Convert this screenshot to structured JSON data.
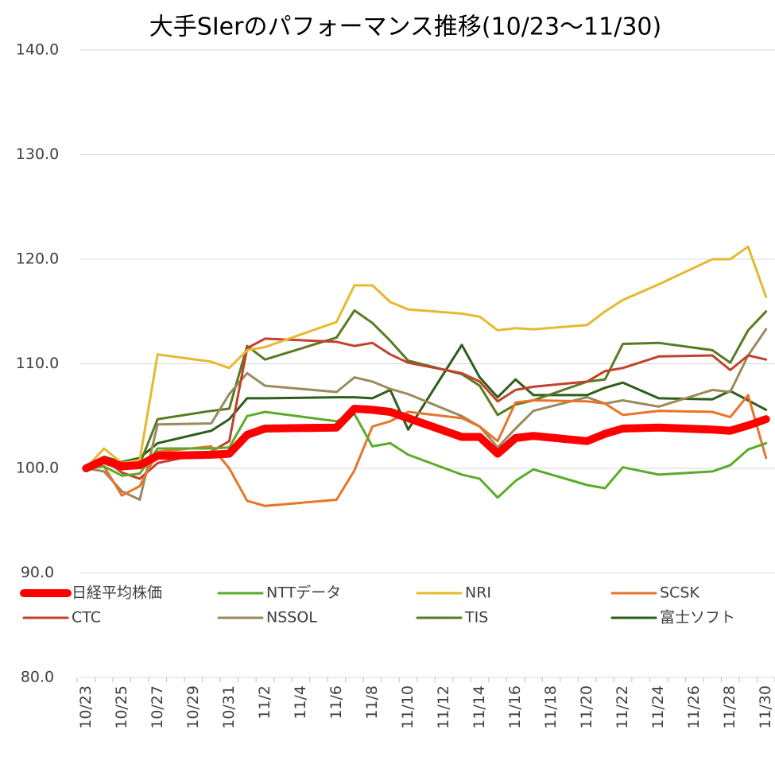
{
  "chart_data": {
    "type": "line",
    "title": "大手SIerのパフォーマンス推移(10/23～11/30)",
    "categories": [
      "10/23",
      null,
      "10/25",
      null,
      "10/27",
      null,
      "10/29",
      null,
      "10/31",
      null,
      "11/2",
      null,
      "11/4",
      null,
      "11/6",
      null,
      "11/8",
      null,
      "11/10",
      null,
      "11/12",
      null,
      "11/14",
      null,
      "11/16",
      null,
      "11/18",
      null,
      "11/20",
      null,
      "11/22",
      null,
      "11/24",
      null,
      "11/26",
      null,
      "11/28",
      null,
      "11/30"
    ],
    "ylim": [
      80,
      140
    ],
    "yticks": [
      {
        "value": 80,
        "label": "80.0"
      },
      {
        "value": 90,
        "label": "90.0"
      },
      {
        "value": 100,
        "label": "100.0"
      },
      {
        "value": 110,
        "label": "110.0"
      },
      {
        "value": 120,
        "label": "120.0"
      },
      {
        "value": 130,
        "label": "130.0"
      },
      {
        "value": 140,
        "label": "140.0"
      }
    ],
    "grid": true,
    "legend": "bottom",
    "series": [
      {
        "name": "日経平均株価",
        "color": "#ff0000",
        "width": 10,
        "values": [
          100,
          100.8,
          100.2,
          100.3,
          101.2,
          null,
          null,
          101.3,
          101.4,
          103.2,
          103.8,
          null,
          null,
          null,
          103.9,
          105.7,
          105.6,
          105.4,
          104.8,
          null,
          null,
          103.0,
          103.0,
          101.4,
          102.9,
          103.1,
          null,
          null,
          102.6,
          103.3,
          103.8,
          null,
          103.9,
          null,
          null,
          103.7,
          103.6,
          104.1,
          104.7
        ]
      },
      {
        "name": "NTTデータ",
        "color": "#5aab2c",
        "width": 3,
        "values": [
          100,
          100.2,
          99.3,
          99.5,
          101.9,
          null,
          null,
          101.9,
          102.0,
          105.0,
          105.4,
          null,
          null,
          null,
          104.5,
          105.2,
          102.1,
          102.4,
          101.3,
          null,
          null,
          99.4,
          99.0,
          97.2,
          98.8,
          99.9,
          null,
          null,
          98.4,
          98.1,
          100.1,
          null,
          99.4,
          null,
          null,
          99.7,
          100.3,
          101.8,
          102.4
        ]
      },
      {
        "name": "NRI",
        "color": "#e6b92e",
        "width": 3,
        "values": [
          100,
          101.9,
          100.5,
          100.8,
          110.9,
          null,
          null,
          110.2,
          109.6,
          111.3,
          111.6,
          null,
          null,
          null,
          114.0,
          117.5,
          117.5,
          115.9,
          115.2,
          null,
          null,
          114.8,
          114.5,
          113.2,
          113.4,
          113.3,
          null,
          null,
          113.7,
          115.0,
          116.1,
          null,
          117.6,
          null,
          null,
          120.0,
          120.0,
          121.2,
          116.4
        ]
      },
      {
        "name": "SCSK",
        "color": "#e8742a",
        "width": 3,
        "values": [
          100,
          100.2,
          97.4,
          98.3,
          101.6,
          null,
          null,
          102.1,
          100.0,
          96.9,
          96.4,
          null,
          null,
          null,
          97.0,
          99.8,
          104.0,
          104.5,
          105.4,
          null,
          null,
          104.8,
          104.0,
          102.6,
          106.3,
          106.5,
          null,
          null,
          106.4,
          106.2,
          105.1,
          null,
          105.5,
          null,
          null,
          105.4,
          104.9,
          107.0,
          101.0
        ]
      },
      {
        "name": "CTC",
        "color": "#c2412d",
        "width": 3,
        "values": [
          100,
          100.9,
          99.6,
          99.0,
          100.5,
          null,
          null,
          101.6,
          102.6,
          111.5,
          112.4,
          null,
          null,
          null,
          112.1,
          111.7,
          112.0,
          110.9,
          110.1,
          null,
          null,
          109.1,
          108.3,
          106.4,
          107.5,
          107.8,
          null,
          null,
          108.3,
          109.3,
          109.6,
          null,
          110.7,
          null,
          null,
          110.8,
          109.4,
          110.8,
          110.4
        ]
      },
      {
        "name": "NSSOL",
        "color": "#9a8a5c",
        "width": 3,
        "values": [
          100,
          99.7,
          97.8,
          97.0,
          104.2,
          null,
          null,
          104.3,
          107.1,
          109.1,
          107.9,
          null,
          null,
          null,
          107.3,
          108.7,
          108.3,
          107.6,
          107.1,
          null,
          null,
          105.0,
          104.0,
          102.0,
          103.8,
          105.5,
          null,
          null,
          106.8,
          106.2,
          106.5,
          null,
          105.9,
          null,
          null,
          107.5,
          107.3,
          110.8,
          113.3
        ]
      },
      {
        "name": "TIS",
        "color": "#5a7a22",
        "width": 3,
        "values": [
          100,
          100.5,
          99.9,
          100.4,
          104.7,
          null,
          null,
          105.5,
          105.7,
          111.7,
          110.4,
          null,
          null,
          null,
          112.5,
          115.1,
          113.9,
          112.2,
          110.3,
          null,
          null,
          109.0,
          107.9,
          105.1,
          106.1,
          106.5,
          null,
          null,
          108.3,
          108.5,
          111.9,
          null,
          112.0,
          null,
          null,
          111.3,
          110.1,
          113.2,
          115.0
        ]
      },
      {
        "name": "富士ソフト",
        "color": "#2d5e1a",
        "width": 3,
        "values": [
          100,
          101.1,
          100.6,
          101.0,
          102.4,
          null,
          null,
          103.6,
          104.7,
          106.7,
          106.7,
          null,
          null,
          null,
          106.8,
          106.8,
          106.7,
          107.5,
          103.7,
          null,
          null,
          111.8,
          108.7,
          106.8,
          108.5,
          107.0,
          null,
          null,
          107.0,
          107.7,
          108.2,
          null,
          106.7,
          null,
          null,
          106.6,
          107.4,
          106.5,
          105.6
        ]
      }
    ]
  }
}
